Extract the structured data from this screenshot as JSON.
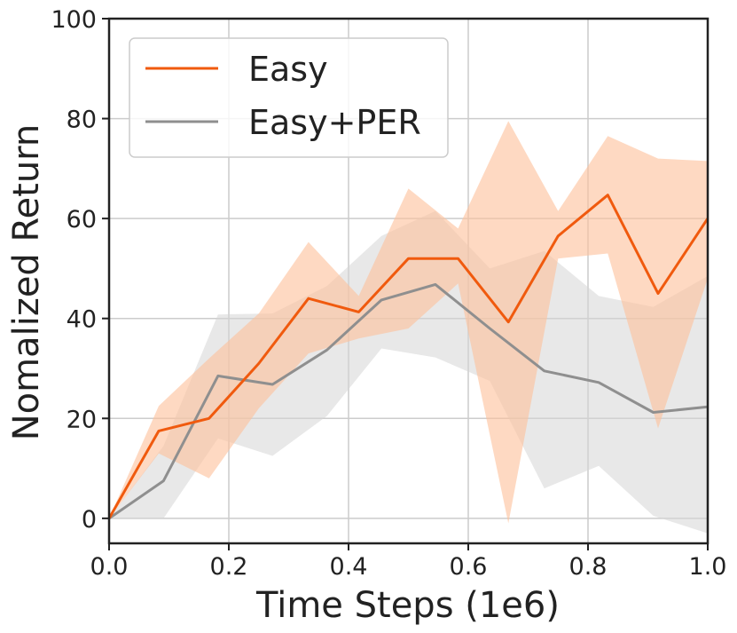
{
  "chart_data": {
    "type": "line",
    "title": "",
    "xlabel": "Time Steps (1e6)",
    "ylabel": "Nomalized Return",
    "xlim": [
      0.0,
      1.0
    ],
    "ylim": [
      -5,
      100
    ],
    "xticks": [
      0.0,
      0.2,
      0.4,
      0.6,
      0.8,
      1.0
    ],
    "xtick_labels": [
      "0.0",
      "0.2",
      "0.4",
      "0.6",
      "0.8",
      "1.0"
    ],
    "yticks": [
      0,
      20,
      40,
      60,
      80,
      100
    ],
    "ytick_labels": [
      "0",
      "20",
      "40",
      "60",
      "80",
      "100"
    ],
    "grid": true,
    "legend": "upper-left",
    "series": [
      {
        "name": "Easy",
        "color": "#f05a0e",
        "band_color": "#fdbf9a",
        "x": [
          0.0,
          0.083,
          0.167,
          0.25,
          0.333,
          0.417,
          0.5,
          0.583,
          0.667,
          0.75,
          0.833,
          0.917,
          1.0
        ],
        "values": [
          0,
          17.5,
          20,
          31,
          44,
          41.3,
          52,
          52,
          39.3,
          56.5,
          64.7,
          45,
          60
        ],
        "lower": [
          0,
          13,
          8,
          22,
          33,
          36,
          38,
          47,
          -1,
          52,
          53,
          18,
          48
        ],
        "upper": [
          0,
          22.5,
          32,
          41,
          55.3,
          44.5,
          66,
          58,
          79.5,
          61.5,
          76.5,
          72,
          71.5
        ]
      },
      {
        "name": "Easy+PER",
        "color": "#8f8f8f",
        "band_color": "#d5d5d5",
        "x": [
          0.0,
          0.091,
          0.182,
          0.273,
          0.364,
          0.455,
          0.545,
          0.636,
          0.727,
          0.818,
          0.909,
          1.0
        ],
        "values": [
          0,
          7.5,
          28.5,
          26.8,
          33.7,
          43.7,
          46.8,
          38,
          29.5,
          27.2,
          21.2,
          22.3
        ],
        "lower": [
          0,
          0,
          16,
          12.5,
          20.5,
          34,
          32.2,
          27.5,
          6,
          10.5,
          0.5,
          -3
        ],
        "upper": [
          0,
          14.5,
          40.8,
          41,
          46.5,
          56.5,
          61.5,
          50,
          53.5,
          44.5,
          42.3,
          48.5
        ]
      }
    ]
  }
}
